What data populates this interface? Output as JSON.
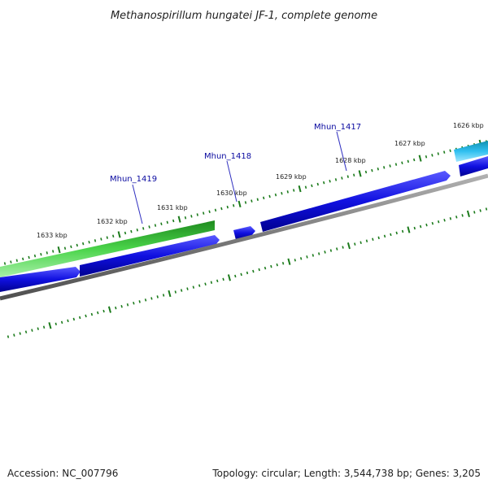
{
  "title": "Methanospirillum hungatei JF-1, complete genome",
  "footer": {
    "accession": "Accession: NC_007796",
    "summary": "Topology: circular; Length: 3,544,738 bp; Genes: 3,205"
  },
  "ticks": [
    {
      "label": "1633 kbp",
      "kbp": 1633
    },
    {
      "label": "1632 kbp",
      "kbp": 1632
    },
    {
      "label": "1631 kbp",
      "kbp": 1631
    },
    {
      "label": "1630 kbp",
      "kbp": 1630
    },
    {
      "label": "1629 kbp",
      "kbp": 1629
    },
    {
      "label": "1628 kbp",
      "kbp": 1628
    },
    {
      "label": "1627 kbp",
      "kbp": 1627
    },
    {
      "label": "1626 kbp",
      "kbp": 1626
    }
  ],
  "gene_labels": [
    {
      "text": "Mhun_1419"
    },
    {
      "text": "Mhun_1418"
    },
    {
      "text": "Mhun_1417"
    }
  ],
  "colors": {
    "tick": "#1a7a1a",
    "gene_blue": "#1010e0",
    "gene_green": "#3cc83c",
    "gene_cyan": "#20b0e0",
    "backbone": "#8a8a8a",
    "label": "#0a0aa0"
  }
}
